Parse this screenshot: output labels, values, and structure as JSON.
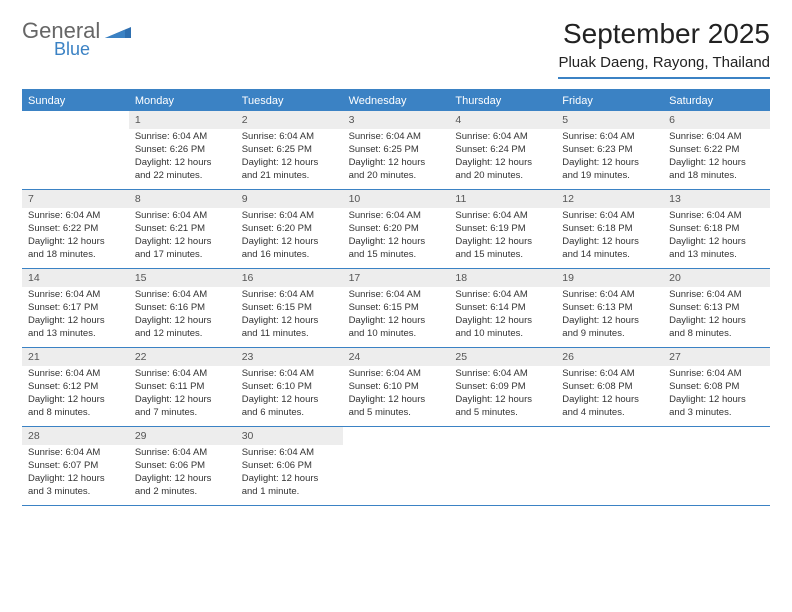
{
  "brand": {
    "main": "General",
    "sub": "Blue",
    "main_color": "#777",
    "sub_color": "#3b82c4"
  },
  "title": "September 2025",
  "subtitle": "Pluak Daeng, Rayong, Thailand",
  "colors": {
    "accent": "#3b82c4",
    "daynum_bg": "#ededed",
    "text": "#333333",
    "background": "#ffffff"
  },
  "fontsize": {
    "title": 28,
    "subtitle": 15,
    "dow": 11,
    "daynum": 10.5,
    "body": 9.5
  },
  "dow": [
    "Sunday",
    "Monday",
    "Tuesday",
    "Wednesday",
    "Thursday",
    "Friday",
    "Saturday"
  ],
  "weeks": [
    [
      null,
      {
        "n": "1",
        "sr": "Sunrise: 6:04 AM",
        "ss": "Sunset: 6:26 PM",
        "d1": "Daylight: 12 hours",
        "d2": "and 22 minutes."
      },
      {
        "n": "2",
        "sr": "Sunrise: 6:04 AM",
        "ss": "Sunset: 6:25 PM",
        "d1": "Daylight: 12 hours",
        "d2": "and 21 minutes."
      },
      {
        "n": "3",
        "sr": "Sunrise: 6:04 AM",
        "ss": "Sunset: 6:25 PM",
        "d1": "Daylight: 12 hours",
        "d2": "and 20 minutes."
      },
      {
        "n": "4",
        "sr": "Sunrise: 6:04 AM",
        "ss": "Sunset: 6:24 PM",
        "d1": "Daylight: 12 hours",
        "d2": "and 20 minutes."
      },
      {
        "n": "5",
        "sr": "Sunrise: 6:04 AM",
        "ss": "Sunset: 6:23 PM",
        "d1": "Daylight: 12 hours",
        "d2": "and 19 minutes."
      },
      {
        "n": "6",
        "sr": "Sunrise: 6:04 AM",
        "ss": "Sunset: 6:22 PM",
        "d1": "Daylight: 12 hours",
        "d2": "and 18 minutes."
      }
    ],
    [
      {
        "n": "7",
        "sr": "Sunrise: 6:04 AM",
        "ss": "Sunset: 6:22 PM",
        "d1": "Daylight: 12 hours",
        "d2": "and 18 minutes."
      },
      {
        "n": "8",
        "sr": "Sunrise: 6:04 AM",
        "ss": "Sunset: 6:21 PM",
        "d1": "Daylight: 12 hours",
        "d2": "and 17 minutes."
      },
      {
        "n": "9",
        "sr": "Sunrise: 6:04 AM",
        "ss": "Sunset: 6:20 PM",
        "d1": "Daylight: 12 hours",
        "d2": "and 16 minutes."
      },
      {
        "n": "10",
        "sr": "Sunrise: 6:04 AM",
        "ss": "Sunset: 6:20 PM",
        "d1": "Daylight: 12 hours",
        "d2": "and 15 minutes."
      },
      {
        "n": "11",
        "sr": "Sunrise: 6:04 AM",
        "ss": "Sunset: 6:19 PM",
        "d1": "Daylight: 12 hours",
        "d2": "and 15 minutes."
      },
      {
        "n": "12",
        "sr": "Sunrise: 6:04 AM",
        "ss": "Sunset: 6:18 PM",
        "d1": "Daylight: 12 hours",
        "d2": "and 14 minutes."
      },
      {
        "n": "13",
        "sr": "Sunrise: 6:04 AM",
        "ss": "Sunset: 6:18 PM",
        "d1": "Daylight: 12 hours",
        "d2": "and 13 minutes."
      }
    ],
    [
      {
        "n": "14",
        "sr": "Sunrise: 6:04 AM",
        "ss": "Sunset: 6:17 PM",
        "d1": "Daylight: 12 hours",
        "d2": "and 13 minutes."
      },
      {
        "n": "15",
        "sr": "Sunrise: 6:04 AM",
        "ss": "Sunset: 6:16 PM",
        "d1": "Daylight: 12 hours",
        "d2": "and 12 minutes."
      },
      {
        "n": "16",
        "sr": "Sunrise: 6:04 AM",
        "ss": "Sunset: 6:15 PM",
        "d1": "Daylight: 12 hours",
        "d2": "and 11 minutes."
      },
      {
        "n": "17",
        "sr": "Sunrise: 6:04 AM",
        "ss": "Sunset: 6:15 PM",
        "d1": "Daylight: 12 hours",
        "d2": "and 10 minutes."
      },
      {
        "n": "18",
        "sr": "Sunrise: 6:04 AM",
        "ss": "Sunset: 6:14 PM",
        "d1": "Daylight: 12 hours",
        "d2": "and 10 minutes."
      },
      {
        "n": "19",
        "sr": "Sunrise: 6:04 AM",
        "ss": "Sunset: 6:13 PM",
        "d1": "Daylight: 12 hours",
        "d2": "and 9 minutes."
      },
      {
        "n": "20",
        "sr": "Sunrise: 6:04 AM",
        "ss": "Sunset: 6:13 PM",
        "d1": "Daylight: 12 hours",
        "d2": "and 8 minutes."
      }
    ],
    [
      {
        "n": "21",
        "sr": "Sunrise: 6:04 AM",
        "ss": "Sunset: 6:12 PM",
        "d1": "Daylight: 12 hours",
        "d2": "and 8 minutes."
      },
      {
        "n": "22",
        "sr": "Sunrise: 6:04 AM",
        "ss": "Sunset: 6:11 PM",
        "d1": "Daylight: 12 hours",
        "d2": "and 7 minutes."
      },
      {
        "n": "23",
        "sr": "Sunrise: 6:04 AM",
        "ss": "Sunset: 6:10 PM",
        "d1": "Daylight: 12 hours",
        "d2": "and 6 minutes."
      },
      {
        "n": "24",
        "sr": "Sunrise: 6:04 AM",
        "ss": "Sunset: 6:10 PM",
        "d1": "Daylight: 12 hours",
        "d2": "and 5 minutes."
      },
      {
        "n": "25",
        "sr": "Sunrise: 6:04 AM",
        "ss": "Sunset: 6:09 PM",
        "d1": "Daylight: 12 hours",
        "d2": "and 5 minutes."
      },
      {
        "n": "26",
        "sr": "Sunrise: 6:04 AM",
        "ss": "Sunset: 6:08 PM",
        "d1": "Daylight: 12 hours",
        "d2": "and 4 minutes."
      },
      {
        "n": "27",
        "sr": "Sunrise: 6:04 AM",
        "ss": "Sunset: 6:08 PM",
        "d1": "Daylight: 12 hours",
        "d2": "and 3 minutes."
      }
    ],
    [
      {
        "n": "28",
        "sr": "Sunrise: 6:04 AM",
        "ss": "Sunset: 6:07 PM",
        "d1": "Daylight: 12 hours",
        "d2": "and 3 minutes."
      },
      {
        "n": "29",
        "sr": "Sunrise: 6:04 AM",
        "ss": "Sunset: 6:06 PM",
        "d1": "Daylight: 12 hours",
        "d2": "and 2 minutes."
      },
      {
        "n": "30",
        "sr": "Sunrise: 6:04 AM",
        "ss": "Sunset: 6:06 PM",
        "d1": "Daylight: 12 hours",
        "d2": "and 1 minute."
      },
      null,
      null,
      null,
      null
    ]
  ]
}
